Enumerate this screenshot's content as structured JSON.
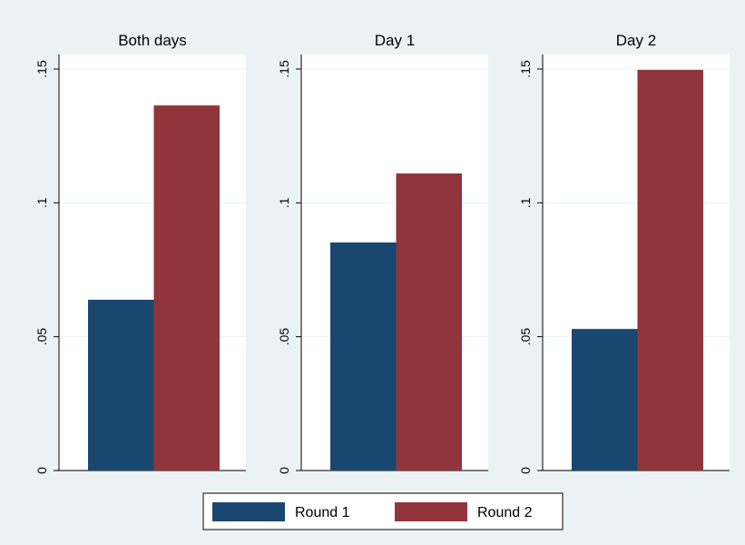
{
  "chart_data": {
    "type": "bar",
    "panels": [
      "Both days",
      "Day 1",
      "Day 2"
    ],
    "series": [
      {
        "name": "Round 1",
        "color": "#1a476f",
        "values": [
          0.0638,
          0.0852,
          0.0529
        ]
      },
      {
        "name": "Round 2",
        "color": "#90353b",
        "values": [
          0.1364,
          0.111,
          0.1497
        ]
      }
    ],
    "ylim": [
      0,
      0.15
    ],
    "yticks": [
      0,
      {
        "value": 0.05,
        "label": ".05"
      },
      {
        "value": 0.1,
        "label": ".1"
      },
      {
        "value": 0.15,
        "label": ".15"
      }
    ],
    "grid": true
  }
}
